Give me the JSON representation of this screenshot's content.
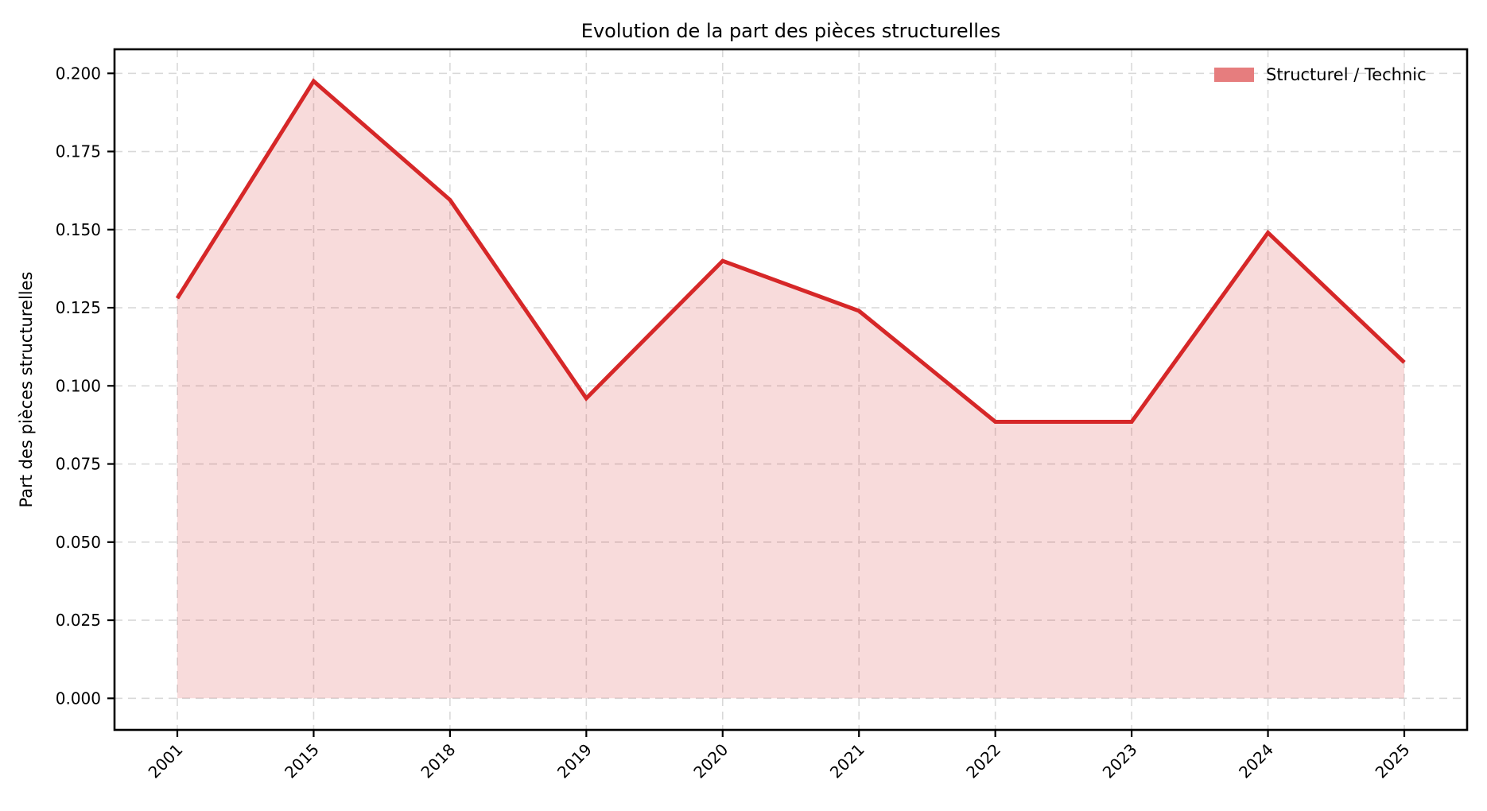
{
  "title": "Evolution de la part des pièces structurelles",
  "legend": {
    "label": "Structurel / Technic",
    "swatch_color": "#e67d7e",
    "frame": false,
    "position": "upper right"
  },
  "colors": {
    "line": "#d62728",
    "fill": "rgba(214,39,40,0.17)",
    "legend_swatch": "#e67d7e",
    "grid": "#d9d9d9",
    "axis": "#000000",
    "text": "#000000",
    "background": "#ffffff"
  },
  "chart_data": {
    "type": "area",
    "title": "Evolution de la part des pièces structurelles",
    "xlabel": "",
    "ylabel": "Part des pièces structurelles",
    "categories": [
      "2001",
      "2015",
      "2018",
      "2019",
      "2020",
      "2021",
      "2022",
      "2023",
      "2024",
      "2025"
    ],
    "series": [
      {
        "name": "Structurel / Technic",
        "values": [
          0.128,
          0.1975,
          0.1595,
          0.096,
          0.14,
          0.124,
          0.0885,
          0.0885,
          0.149,
          0.1075
        ]
      }
    ],
    "ylim": [
      -0.0101,
      0.2077
    ],
    "yticks": [
      "0.000",
      "0.025",
      "0.050",
      "0.075",
      "0.100",
      "0.125",
      "0.150",
      "0.175",
      "0.200"
    ],
    "grid": true,
    "grid_style": "dashed",
    "x_tick_rotation": 45,
    "legend_position": "upper right",
    "baseline": 0
  }
}
